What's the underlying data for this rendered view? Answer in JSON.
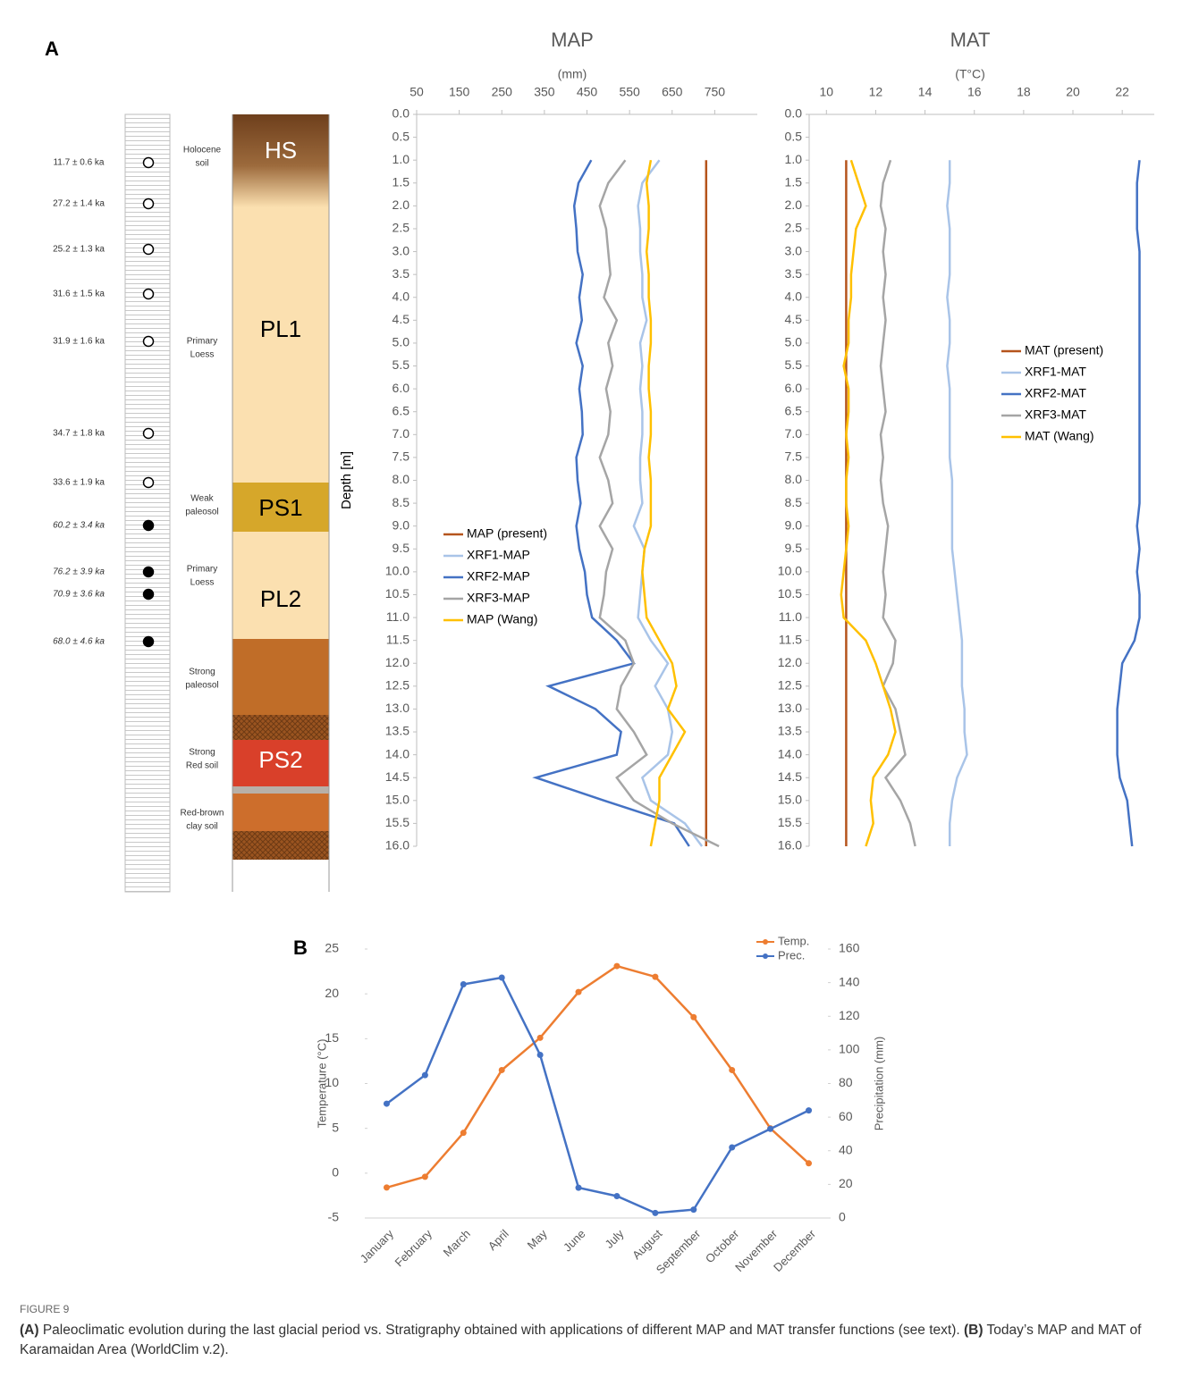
{
  "panel_labels": [
    "A",
    "B"
  ],
  "stratigraphy": {
    "ages": [
      {
        "label": "11.7 ± 0.6 ka",
        "filled": false
      },
      {
        "label": "27.2 ± 1.4 ka",
        "filled": false
      },
      {
        "label": "25.2 ± 1.3 ka",
        "filled": false
      },
      {
        "label": "31.6 ± 1.5 ka",
        "filled": false
      },
      {
        "label": "31.9 ± 1.6 ka",
        "filled": false
      },
      {
        "label": "34.7 ± 1.8 ka",
        "filled": false
      },
      {
        "label": "33.6 ± 1.9 ka",
        "filled": false
      },
      {
        "label": "60.2 ± 3.4 ka",
        "filled": true
      },
      {
        "label": "76.2 ± 3.9 ka",
        "filled": true
      },
      {
        "label": "70.9 ± 3.6 ka",
        "filled": true
      },
      {
        "label": "68.0 ± 4.6 ka",
        "filled": true
      }
    ],
    "units": [
      "HS",
      "PL1",
      "PS1",
      "PL2",
      "PS2"
    ],
    "descriptions": [
      [
        "Holocene",
        "soil"
      ],
      [
        "Primary",
        "Loess"
      ],
      [
        "Weak",
        "paleosol"
      ],
      [
        "Primary",
        "Loess"
      ],
      [
        "Strong",
        "paleosol"
      ],
      [
        "Strong",
        "Red soil"
      ],
      [
        "Red-brown",
        "clay soil"
      ]
    ]
  },
  "chart_data": [
    {
      "type": "profile",
      "title": "MAP",
      "xlabel": "(mm)",
      "ylabel": "Depth [m]",
      "xlim": [
        50,
        850
      ],
      "xticks": [
        50,
        150,
        250,
        350,
        450,
        550,
        650,
        750
      ],
      "ylim": [
        0,
        16
      ],
      "yticks": [
        {
          "value": 0,
          "label": "0.0"
        },
        0.5,
        {
          "value": 1,
          "label": "1.0"
        },
        1.5,
        {
          "value": 2,
          "label": "2.0"
        },
        2.5,
        {
          "value": 3,
          "label": "3.0"
        },
        3.5,
        {
          "value": 4,
          "label": "4.0"
        },
        4.5,
        {
          "value": 5,
          "label": "5.0"
        },
        5.5,
        {
          "value": 6,
          "label": "6.0"
        },
        6.5,
        {
          "value": 7,
          "label": "7.0"
        },
        7.5,
        {
          "value": 8,
          "label": "8.0"
        },
        8.5,
        {
          "value": 9,
          "label": "9.0"
        },
        9.5,
        {
          "value": 10,
          "label": "10.0"
        },
        10.5,
        {
          "value": 11,
          "label": "11.0"
        },
        11.5,
        {
          "value": 12,
          "label": "12.0"
        },
        12.5,
        {
          "value": 13,
          "label": "13.0"
        },
        13.5,
        {
          "value": 14,
          "label": "14.0"
        },
        14.5,
        {
          "value": 15,
          "label": "15.0"
        },
        15.5,
        {
          "value": 16,
          "label": "16.0"
        }
      ],
      "y_inverted": true,
      "legend": "left",
      "y": [
        1,
        1.5,
        2,
        2.5,
        3,
        3.5,
        4,
        4.5,
        5,
        5.5,
        6,
        6.5,
        7,
        7.5,
        8,
        8.5,
        9,
        9.5,
        10,
        10.5,
        11,
        11.5,
        12,
        12.5,
        13,
        13.5,
        14,
        14.5,
        15,
        15.5,
        16
      ],
      "series": [
        {
          "name": "MAP (present)",
          "color": "#b5541c",
          "values": [
            730,
            730,
            730,
            730,
            730,
            730,
            730,
            730,
            730,
            730,
            730,
            730,
            730,
            730,
            730,
            730,
            730,
            730,
            730,
            730,
            730,
            730,
            730,
            730,
            730,
            730,
            730,
            730,
            730,
            730,
            730
          ]
        },
        {
          "name": "XRF1-MAP",
          "color": "#a9c4e8",
          "values": [
            620,
            580,
            570,
            575,
            575,
            580,
            580,
            590,
            575,
            580,
            575,
            580,
            580,
            575,
            575,
            580,
            560,
            585,
            580,
            575,
            570,
            600,
            640,
            610,
            640,
            650,
            640,
            580,
            600,
            680,
            720
          ]
        },
        {
          "name": "XRF2-MAP",
          "color": "#4472c4",
          "values": [
            460,
            430,
            420,
            425,
            428,
            440,
            432,
            438,
            425,
            440,
            432,
            438,
            440,
            425,
            428,
            435,
            425,
            432,
            445,
            450,
            462,
            520,
            560,
            360,
            470,
            530,
            520,
            330,
            490,
            655,
            690
          ]
        },
        {
          "name": "XRF3-MAP",
          "color": "#a5a5a5",
          "values": [
            540,
            500,
            480,
            495,
            500,
            505,
            490,
            520,
            500,
            510,
            495,
            505,
            500,
            480,
            500,
            510,
            480,
            510,
            495,
            490,
            480,
            540,
            560,
            530,
            520,
            560,
            590,
            520,
            560,
            650,
            760
          ]
        },
        {
          "name": "MAP (Wang)",
          "color": "#ffc000",
          "values": [
            600,
            590,
            595,
            595,
            590,
            595,
            595,
            600,
            600,
            595,
            595,
            600,
            600,
            595,
            600,
            600,
            600,
            585,
            580,
            585,
            590,
            620,
            650,
            660,
            640,
            680,
            650,
            620,
            620,
            610,
            600
          ]
        }
      ]
    },
    {
      "type": "profile",
      "title": "MAT",
      "xlabel": "(T°C)",
      "xlim": [
        9.3,
        23.3
      ],
      "xticks": [
        10,
        12,
        14,
        16,
        18,
        20,
        22
      ],
      "ylim": [
        0,
        16
      ],
      "yticks": [
        {
          "value": 0,
          "label": "0.0"
        },
        0.5,
        {
          "value": 1,
          "label": "1.0"
        },
        1.5,
        {
          "value": 2,
          "label": "2.0"
        },
        2.5,
        {
          "value": 3,
          "label": "3.0"
        },
        3.5,
        {
          "value": 4,
          "label": "4.0"
        },
        4.5,
        {
          "value": 5,
          "label": "5.0"
        },
        5.5,
        {
          "value": 6,
          "label": "6.0"
        },
        6.5,
        {
          "value": 7,
          "label": "7.0"
        },
        7.5,
        {
          "value": 8,
          "label": "8.0"
        },
        8.5,
        {
          "value": 9,
          "label": "9.0"
        },
        9.5,
        {
          "value": 10,
          "label": "10.0"
        },
        10.5,
        {
          "value": 11,
          "label": "11.0"
        },
        11.5,
        {
          "value": 12,
          "label": "12.0"
        },
        12.5,
        {
          "value": 13,
          "label": "13.0"
        },
        13.5,
        {
          "value": 14,
          "label": "14.0"
        },
        14.5,
        {
          "value": 15,
          "label": "15.0"
        },
        15.5,
        {
          "value": 16,
          "label": "16.0"
        }
      ],
      "y_inverted": true,
      "legend": "right",
      "y": [
        1,
        1.5,
        2,
        2.5,
        3,
        3.5,
        4,
        4.5,
        5,
        5.5,
        6,
        6.5,
        7,
        7.5,
        8,
        8.5,
        9,
        9.5,
        10,
        10.5,
        11,
        11.5,
        12,
        12.5,
        13,
        13.5,
        14,
        14.5,
        15,
        15.5,
        16
      ],
      "series": [
        {
          "name": "MAT (present)",
          "color": "#b5541c",
          "values": [
            10.8,
            10.8,
            10.8,
            10.8,
            10.8,
            10.8,
            10.8,
            10.8,
            10.8,
            10.8,
            10.8,
            10.8,
            10.8,
            10.8,
            10.8,
            10.8,
            10.8,
            10.8,
            10.8,
            10.8,
            10.8,
            10.8,
            10.8,
            10.8,
            10.8,
            10.8,
            10.8,
            10.8,
            10.8,
            10.8,
            10.8
          ]
        },
        {
          "name": "XRF1-MAT",
          "color": "#a9c4e8",
          "values": [
            15.0,
            15.0,
            14.9,
            15.0,
            15.0,
            15.0,
            14.9,
            15.0,
            15.0,
            14.9,
            15.0,
            15.0,
            15.0,
            15.0,
            15.1,
            15.1,
            15.1,
            15.1,
            15.2,
            15.3,
            15.4,
            15.5,
            15.5,
            15.5,
            15.6,
            15.6,
            15.7,
            15.3,
            15.1,
            15.0,
            15.0
          ]
        },
        {
          "name": "XRF2-MAT",
          "color": "#4472c4",
          "values": [
            22.7,
            22.6,
            22.6,
            22.6,
            22.7,
            22.7,
            22.7,
            22.7,
            22.7,
            22.7,
            22.7,
            22.7,
            22.7,
            22.7,
            22.7,
            22.7,
            22.6,
            22.7,
            22.6,
            22.7,
            22.7,
            22.5,
            22.0,
            21.9,
            21.8,
            21.8,
            21.8,
            21.9,
            22.2,
            22.3,
            22.4
          ]
        },
        {
          "name": "XRF3-MAT",
          "color": "#a5a5a5",
          "values": [
            12.6,
            12.3,
            12.2,
            12.4,
            12.3,
            12.4,
            12.3,
            12.4,
            12.3,
            12.2,
            12.3,
            12.4,
            12.2,
            12.3,
            12.2,
            12.3,
            12.5,
            12.4,
            12.3,
            12.4,
            12.3,
            12.8,
            12.7,
            12.3,
            12.8,
            13.0,
            13.2,
            12.4,
            13.0,
            13.4,
            13.6
          ]
        },
        {
          "name": "MAT (Wang)",
          "color": "#ffc000",
          "values": [
            11.0,
            11.3,
            11.6,
            11.2,
            11.1,
            11.0,
            11.0,
            10.9,
            10.9,
            10.7,
            10.9,
            10.9,
            10.8,
            10.9,
            10.8,
            10.8,
            10.9,
            10.8,
            10.7,
            10.6,
            10.7,
            11.6,
            12.0,
            12.3,
            12.6,
            12.8,
            12.5,
            11.9,
            11.8,
            11.9,
            11.6
          ]
        }
      ]
    },
    {
      "type": "line",
      "ylabel": "Temperature (°C)",
      "y2label": "Precipitation (mm)",
      "categories": [
        "January",
        "February",
        "March",
        "April",
        "May",
        "June",
        "July",
        "August",
        "September",
        "October",
        "November",
        "December"
      ],
      "ylim": [
        -5,
        25
      ],
      "yticks": [
        -5,
        0,
        5,
        10,
        15,
        20,
        25
      ],
      "y2lim": [
        0,
        160
      ],
      "y2ticks": [
        0,
        20,
        40,
        60,
        80,
        100,
        120,
        140,
        160
      ],
      "legend": "top-right",
      "series": [
        {
          "name": "Temp.",
          "color": "#ed7d31",
          "values": [
            -1.6,
            -0.4,
            4.5,
            11.5,
            15.1,
            20.2,
            23.1,
            21.9,
            17.4,
            11.5,
            5.0,
            1.1
          ]
        },
        {
          "name": "Prec.",
          "color": "#4472c4",
          "axis": "y2",
          "values": [
            68,
            85,
            139,
            143,
            97,
            18,
            13,
            3,
            5,
            42,
            53,
            64
          ]
        }
      ]
    }
  ],
  "caption": {
    "figure": "FIGURE 9",
    "a_label": "(A)",
    "a_text": " Paleoclimatic evolution during the last glacial period vs. Stratigraphy obtained with applications of different MAP and MAT transfer functions (see text). ",
    "b_label": "(B)",
    "b_text": " Today’s MAP and MAT of Karamaidan Area (WorldClim v.2)."
  }
}
